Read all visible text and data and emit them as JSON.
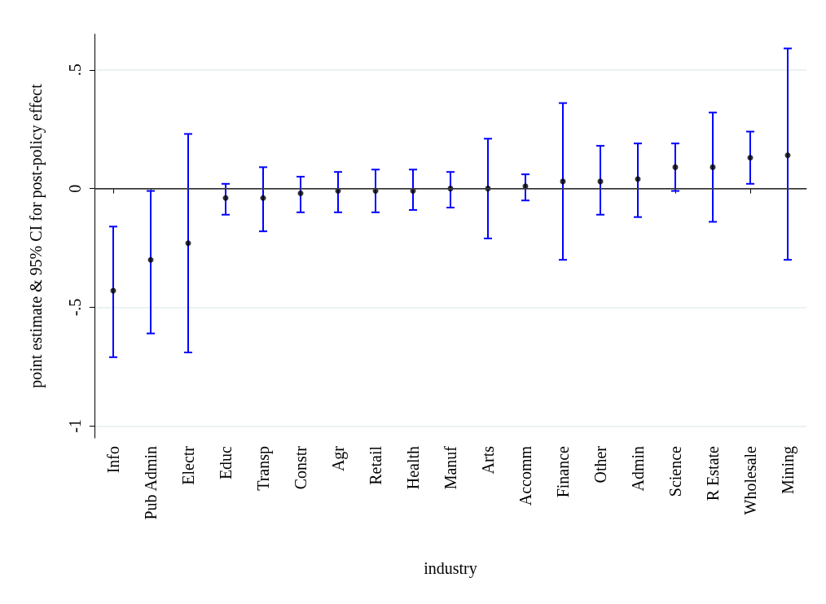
{
  "chart_data": {
    "type": "scatter",
    "xlabel": "industry",
    "ylabel": "point estimate & 95% CI for post-policy effect",
    "categories": [
      "Info",
      "Pub Admin",
      "Electr",
      "Educ",
      "Transp",
      "Constr",
      "Agr",
      "Retail",
      "Health",
      "Manuf",
      "Arts",
      "Accomm",
      "Finance",
      "Other",
      "Admin",
      "Science",
      "R Estate",
      "Wholesale",
      "Mining"
    ],
    "series": [
      {
        "color": "#000000",
        "values": [
          -0.43,
          -0.3,
          -0.23,
          -0.04,
          -0.04,
          -0.02,
          -0.01,
          -0.01,
          -0.01,
          0,
          0,
          0.01,
          0.03,
          0.03,
          0.04,
          0.09,
          0.09,
          0.13,
          0.14
        ],
        "errors": [
          [
            -0.71,
            -0.16
          ],
          [
            -0.61,
            -0.01
          ],
          [
            -0.69,
            0.23
          ],
          [
            -0.11,
            0.02
          ],
          [
            -0.18,
            0.09
          ],
          [
            -0.1,
            0.05
          ],
          [
            -0.1,
            0.07
          ],
          [
            -0.1,
            0.08
          ],
          [
            -0.09,
            0.08
          ],
          [
            -0.08,
            0.07
          ],
          [
            -0.21,
            0.21
          ],
          [
            -0.05,
            0.06
          ],
          [
            -0.3,
            0.36
          ],
          [
            -0.11,
            0.18
          ],
          [
            -0.12,
            0.19
          ],
          [
            -0.01,
            0.19
          ],
          [
            -0.14,
            0.32
          ],
          [
            0.02,
            0.24
          ],
          [
            -0.3,
            0.59
          ]
        ]
      }
    ],
    "ylim": [
      -1.05,
      0.65
    ],
    "yticks": [
      {
        "value": -1,
        "label": "-1"
      },
      {
        "value": -0.5,
        "label": "-.5"
      },
      {
        "value": 0,
        "label": "0"
      },
      {
        "value": 0.5,
        "label": ".5"
      }
    ],
    "grid": "y",
    "marker": "circle",
    "ref_lines": [
      {
        "axis": "y",
        "value": 0,
        "color": "#444444"
      }
    ]
  }
}
